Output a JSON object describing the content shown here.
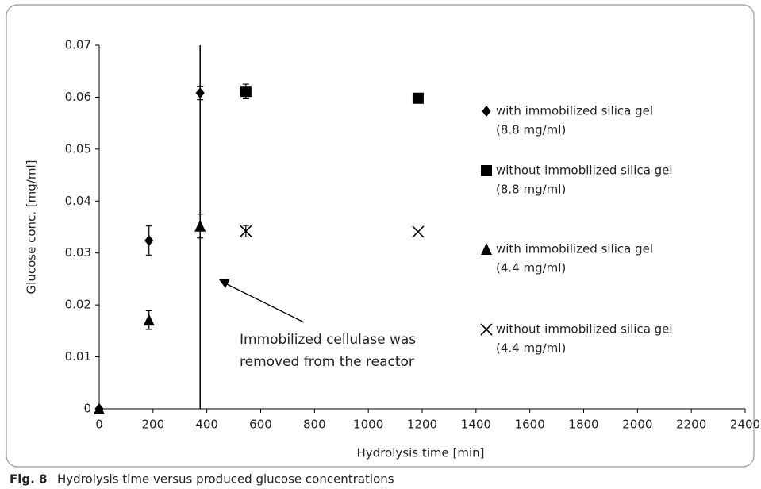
{
  "chart_data": {
    "type": "scatter",
    "xlabel": "Hydrolysis time [min]",
    "ylabel": "Glucose conc. [mg/ml]",
    "xlim": [
      0,
      2400
    ],
    "xticks": [
      0,
      200,
      400,
      600,
      800,
      1000,
      1200,
      1400,
      1600,
      1800,
      2000,
      2200,
      2400
    ],
    "ylim": [
      0,
      0.07
    ],
    "yticks": [
      0,
      0.01,
      0.02,
      0.03,
      0.04,
      0.05,
      0.06,
      0.07
    ],
    "grid": false,
    "vertical_line_x": 375,
    "annotation": [
      "Immobilized cellulase was",
      "removed from the reactor"
    ],
    "series": [
      {
        "name": "with immobilized silica gel",
        "concentration": "(8.8 mg/ml)",
        "marker": "diamond",
        "color": "#000000",
        "x": [
          0,
          185,
          375
        ],
        "values": [
          0,
          0.0324,
          0.0608
        ],
        "errors": [
          null,
          0.0028,
          0.0013
        ]
      },
      {
        "name": "without immobilized silica gel",
        "concentration": "(8.8 mg/ml)",
        "marker": "square",
        "color": "#000000",
        "x": [
          545,
          1185
        ],
        "values": [
          0.0611,
          0.0598
        ],
        "errors": [
          0.0014,
          null
        ]
      },
      {
        "name": "with immobilized silica gel",
        "concentration": "(4.4 mg/ml)",
        "marker": "triangle",
        "color": "#000000",
        "x": [
          0,
          185,
          375
        ],
        "values": [
          0,
          0.0171,
          0.0352
        ],
        "errors": [
          null,
          0.0018,
          0.0023
        ]
      },
      {
        "name": "without immobilized silica gel",
        "concentration": "(4.4 mg/ml)",
        "marker": "x",
        "color": "#000000",
        "x": [
          545,
          1185
        ],
        "values": [
          0.0342,
          0.0341
        ],
        "errors": [
          0.0011,
          null
        ]
      }
    ]
  },
  "caption": {
    "label": "Fig. 8",
    "text": "Hydrolysis time versus produced glucose concentrations"
  }
}
